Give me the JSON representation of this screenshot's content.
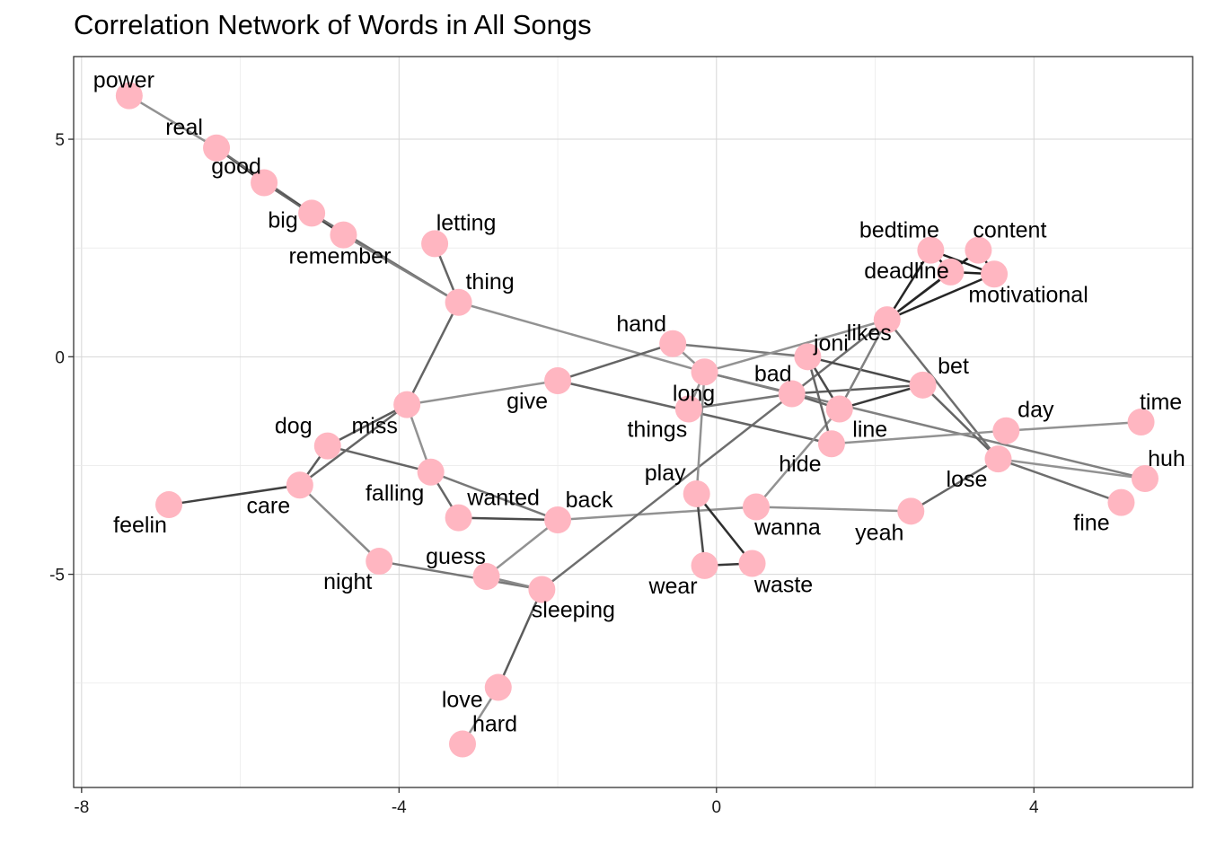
{
  "chart_data": {
    "type": "network",
    "title": "Correlation Network of Words in All Songs",
    "xlim": [
      -8.1,
      6
    ],
    "ylim": [
      -9.9,
      6.9
    ],
    "x_ticks": [
      {
        "value": -8,
        "label": "-8"
      },
      {
        "value": -4,
        "label": "-4"
      },
      {
        "value": 0,
        "label": "0"
      },
      {
        "value": 4,
        "label": "4"
      }
    ],
    "y_ticks": [
      {
        "value": 5,
        "label": "5"
      },
      {
        "value": 0,
        "label": "0"
      },
      {
        "value": -5,
        "label": "-5"
      }
    ],
    "grid": true,
    "node_color": "#ffb6c1",
    "nodes": [
      {
        "id": "power",
        "x": -7.4,
        "y": 6.0,
        "label": "power"
      },
      {
        "id": "real",
        "x": -6.3,
        "y": 4.8,
        "label": "real"
      },
      {
        "id": "good",
        "x": -5.7,
        "y": 4.0,
        "label": "good"
      },
      {
        "id": "big",
        "x": -5.1,
        "y": 3.3,
        "label": "big"
      },
      {
        "id": "remember",
        "x": -4.7,
        "y": 2.8,
        "label": "remember"
      },
      {
        "id": "letting",
        "x": -3.55,
        "y": 2.6,
        "label": "letting"
      },
      {
        "id": "thing",
        "x": -3.25,
        "y": 1.25,
        "label": "thing"
      },
      {
        "id": "miss",
        "x": -3.9,
        "y": -1.1,
        "label": "miss"
      },
      {
        "id": "dog",
        "x": -4.9,
        "y": -2.05,
        "label": "dog"
      },
      {
        "id": "care",
        "x": -5.25,
        "y": -2.95,
        "label": "care"
      },
      {
        "id": "feelin",
        "x": -6.9,
        "y": -3.4,
        "label": "feelin"
      },
      {
        "id": "falling",
        "x": -3.6,
        "y": -2.65,
        "label": "falling"
      },
      {
        "id": "wanted",
        "x": -3.25,
        "y": -3.7,
        "label": "wanted"
      },
      {
        "id": "back",
        "x": -2.0,
        "y": -3.75,
        "label": "back"
      },
      {
        "id": "night",
        "x": -4.25,
        "y": -4.7,
        "label": "night"
      },
      {
        "id": "guess",
        "x": -2.9,
        "y": -5.05,
        "label": "guess"
      },
      {
        "id": "sleeping",
        "x": -2.2,
        "y": -5.35,
        "label": "sleeping"
      },
      {
        "id": "love",
        "x": -2.75,
        "y": -7.6,
        "label": "love"
      },
      {
        "id": "hard",
        "x": -3.2,
        "y": -8.9,
        "label": "hard"
      },
      {
        "id": "give",
        "x": -2.0,
        "y": -0.55,
        "label": "give"
      },
      {
        "id": "hand",
        "x": -0.55,
        "y": 0.3,
        "label": "hand"
      },
      {
        "id": "long",
        "x": -0.15,
        "y": -0.35,
        "label": "long"
      },
      {
        "id": "things",
        "x": -0.35,
        "y": -1.2,
        "label": "things"
      },
      {
        "id": "play",
        "x": -0.25,
        "y": -3.15,
        "label": "play"
      },
      {
        "id": "wanna",
        "x": 0.5,
        "y": -3.45,
        "label": "wanna"
      },
      {
        "id": "wear",
        "x": -0.15,
        "y": -4.8,
        "label": "wear"
      },
      {
        "id": "waste",
        "x": 0.45,
        "y": -4.75,
        "label": "waste"
      },
      {
        "id": "bad",
        "x": 0.95,
        "y": -0.85,
        "label": "bad"
      },
      {
        "id": "joni",
        "x": 1.15,
        "y": 0.0,
        "label": "joni"
      },
      {
        "id": "line",
        "x": 1.55,
        "y": -1.2,
        "label": "line"
      },
      {
        "id": "hide",
        "x": 1.45,
        "y": -2.0,
        "label": "hide"
      },
      {
        "id": "likes",
        "x": 2.15,
        "y": 0.85,
        "label": "likes"
      },
      {
        "id": "bet",
        "x": 2.6,
        "y": -0.65,
        "label": "bet"
      },
      {
        "id": "bedtime",
        "x": 2.7,
        "y": 2.45,
        "label": "bedtime"
      },
      {
        "id": "content",
        "x": 3.3,
        "y": 2.45,
        "label": "content"
      },
      {
        "id": "deadline",
        "x": 2.95,
        "y": 1.95,
        "label": "deadline"
      },
      {
        "id": "motivational",
        "x": 3.5,
        "y": 1.9,
        "label": "motivational"
      },
      {
        "id": "day",
        "x": 3.65,
        "y": -1.7,
        "label": "day"
      },
      {
        "id": "lose",
        "x": 3.55,
        "y": -2.35,
        "label": "lose"
      },
      {
        "id": "yeah",
        "x": 2.45,
        "y": -3.55,
        "label": "yeah"
      },
      {
        "id": "time",
        "x": 5.35,
        "y": -1.5,
        "label": "time"
      },
      {
        "id": "huh",
        "x": 5.4,
        "y": -2.8,
        "label": "huh"
      },
      {
        "id": "fine",
        "x": 5.1,
        "y": -3.35,
        "label": "fine"
      }
    ],
    "edges": [
      {
        "from": "power",
        "to": "real",
        "weight": 0.3
      },
      {
        "from": "real",
        "to": "good",
        "weight": 0.85
      },
      {
        "from": "real",
        "to": "big",
        "weight": 0.5
      },
      {
        "from": "good",
        "to": "big",
        "weight": 0.85
      },
      {
        "from": "good",
        "to": "remember",
        "weight": 0.55
      },
      {
        "from": "big",
        "to": "remember",
        "weight": 0.8
      },
      {
        "from": "big",
        "to": "thing",
        "weight": 0.5
      },
      {
        "from": "remember",
        "to": "thing",
        "weight": 0.4
      },
      {
        "from": "letting",
        "to": "thing",
        "weight": 0.55
      },
      {
        "from": "thing",
        "to": "miss",
        "weight": 0.55
      },
      {
        "from": "thing",
        "to": "long",
        "weight": 0.3
      },
      {
        "from": "miss",
        "to": "give",
        "weight": 0.3
      },
      {
        "from": "miss",
        "to": "dog",
        "weight": 0.6
      },
      {
        "from": "miss",
        "to": "care",
        "weight": 0.55
      },
      {
        "from": "miss",
        "to": "falling",
        "weight": 0.3
      },
      {
        "from": "dog",
        "to": "falling",
        "weight": 0.55
      },
      {
        "from": "care",
        "to": "feelin",
        "weight": 0.75
      },
      {
        "from": "care",
        "to": "dog",
        "weight": 0.6
      },
      {
        "from": "care",
        "to": "night",
        "weight": 0.35
      },
      {
        "from": "falling",
        "to": "wanted",
        "weight": 0.55
      },
      {
        "from": "falling",
        "to": "back",
        "weight": 0.45
      },
      {
        "from": "wanted",
        "to": "back",
        "weight": 0.7
      },
      {
        "from": "back",
        "to": "guess",
        "weight": 0.3
      },
      {
        "from": "back",
        "to": "wanna",
        "weight": 0.3
      },
      {
        "from": "night",
        "to": "sleeping",
        "weight": 0.45
      },
      {
        "from": "guess",
        "to": "sleeping",
        "weight": 0.35
      },
      {
        "from": "sleeping",
        "to": "love",
        "weight": 0.6
      },
      {
        "from": "sleeping",
        "to": "likes",
        "weight": 0.5
      },
      {
        "from": "love",
        "to": "hard",
        "weight": 0.3
      },
      {
        "from": "give",
        "to": "hand",
        "weight": 0.55
      },
      {
        "from": "give",
        "to": "hide",
        "weight": 0.55
      },
      {
        "from": "hand",
        "to": "joni",
        "weight": 0.45
      },
      {
        "from": "hand",
        "to": "long",
        "weight": 0.3
      },
      {
        "from": "long",
        "to": "play",
        "weight": 0.3
      },
      {
        "from": "long",
        "to": "likes",
        "weight": 0.3
      },
      {
        "from": "long",
        "to": "bad",
        "weight": 0.5
      },
      {
        "from": "long",
        "to": "huh",
        "weight": 0.4
      },
      {
        "from": "things",
        "to": "long",
        "weight": 0.3
      },
      {
        "from": "things",
        "to": "bad",
        "weight": 0.45
      },
      {
        "from": "play",
        "to": "wear",
        "weight": 0.7
      },
      {
        "from": "play",
        "to": "waste",
        "weight": 0.85
      },
      {
        "from": "wear",
        "to": "waste",
        "weight": 0.8
      },
      {
        "from": "wanna",
        "to": "yeah",
        "weight": 0.3
      },
      {
        "from": "wanna",
        "to": "line",
        "weight": 0.3
      },
      {
        "from": "bad",
        "to": "bet",
        "weight": 0.6
      },
      {
        "from": "bad",
        "to": "line",
        "weight": 0.55
      },
      {
        "from": "joni",
        "to": "line",
        "weight": 0.7
      },
      {
        "from": "joni",
        "to": "bet",
        "weight": 0.7
      },
      {
        "from": "joni",
        "to": "hide",
        "weight": 0.55
      },
      {
        "from": "line",
        "to": "bet",
        "weight": 0.8
      },
      {
        "from": "line",
        "to": "likes",
        "weight": 0.4
      },
      {
        "from": "likes",
        "to": "bedtime",
        "weight": 0.9
      },
      {
        "from": "likes",
        "to": "content",
        "weight": 0.9
      },
      {
        "from": "likes",
        "to": "deadline",
        "weight": 0.9
      },
      {
        "from": "likes",
        "to": "motivational",
        "weight": 0.9
      },
      {
        "from": "likes",
        "to": "lose",
        "weight": 0.5
      },
      {
        "from": "bedtime",
        "to": "deadline",
        "weight": 0.95
      },
      {
        "from": "bedtime",
        "to": "motivational",
        "weight": 0.95
      },
      {
        "from": "content",
        "to": "deadline",
        "weight": 0.95
      },
      {
        "from": "content",
        "to": "motivational",
        "weight": 0.95
      },
      {
        "from": "deadline",
        "to": "motivational",
        "weight": 0.95
      },
      {
        "from": "bet",
        "to": "lose",
        "weight": 0.55
      },
      {
        "from": "hide",
        "to": "day",
        "weight": 0.3
      },
      {
        "from": "day",
        "to": "time",
        "weight": 0.3
      },
      {
        "from": "lose",
        "to": "yeah",
        "weight": 0.55
      },
      {
        "from": "lose",
        "to": "fine",
        "weight": 0.5
      },
      {
        "from": "lose",
        "to": "huh",
        "weight": 0.3
      }
    ]
  }
}
